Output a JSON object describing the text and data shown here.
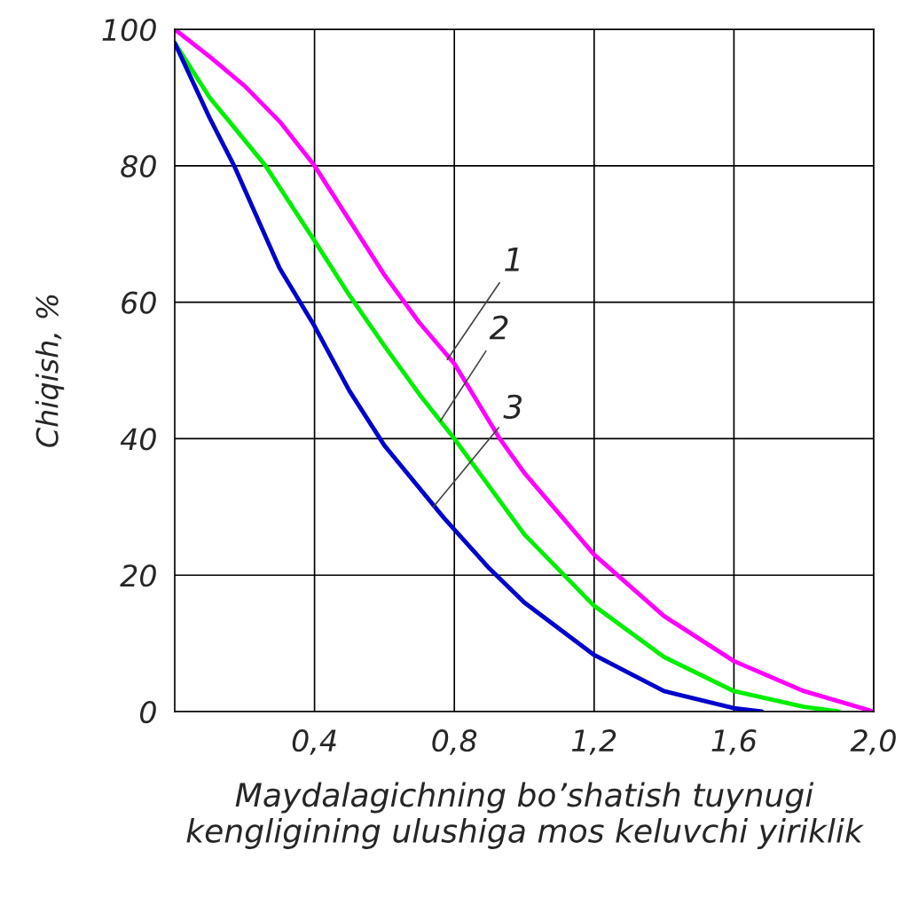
{
  "chart_data": {
    "type": "line",
    "xlabel": "Maydalagichning bo’shatish tuynugi kengligining ulushiga mos keluvchi yiriklik",
    "ylabel": "Chiqish, %",
    "xlim": [
      0,
      2.0
    ],
    "ylim": [
      0,
      100
    ],
    "xticks": [
      {
        "value": 0.4,
        "label": "0,4"
      },
      {
        "value": 0.8,
        "label": "0,8"
      },
      {
        "value": 1.2,
        "label": "1,2"
      },
      {
        "value": 1.6,
        "label": "1,6"
      },
      {
        "value": 2.0,
        "label": "2,0"
      }
    ],
    "yticks": [
      0,
      20,
      40,
      60,
      80,
      100
    ],
    "grid": true,
    "line_style": "solid",
    "marker": "none",
    "series": [
      {
        "color": "#ff00ff",
        "x": [
          0,
          0.1,
          0.2,
          0.3,
          0.4,
          0.5,
          0.6,
          0.7,
          0.8,
          0.93,
          1.0,
          1.2,
          1.4,
          1.6,
          1.8,
          2.0
        ],
        "values": [
          100,
          96,
          91.7,
          86.5,
          80,
          72,
          64,
          57,
          51,
          40,
          35,
          23,
          14,
          7.4,
          3,
          0
        ]
      },
      {
        "color": "#00ee00",
        "x": [
          0,
          0.1,
          0.26,
          0.4,
          0.5,
          0.6,
          0.7,
          0.8,
          1.0,
          1.2,
          1.4,
          1.6,
          1.8,
          1.9
        ],
        "values": [
          98,
          90,
          80,
          69,
          61,
          53.6,
          46.5,
          40,
          26,
          15.5,
          8,
          3,
          0.7,
          0
        ]
      },
      {
        "color": "#0000cc",
        "x": [
          0,
          0.1,
          0.17,
          0.3,
          0.4,
          0.5,
          0.6,
          0.77,
          0.9,
          1.0,
          1.2,
          1.4,
          1.6,
          1.68
        ],
        "values": [
          98,
          87,
          80,
          65,
          56.5,
          47,
          39,
          28.4,
          21,
          16,
          8.3,
          3,
          0.5,
          0
        ]
      }
    ],
    "annotations": [
      {
        "text": "1",
        "x": 0.78,
        "y": 51.6
      },
      {
        "text": "2",
        "x": 0.76,
        "y": 42.6
      },
      {
        "text": "3",
        "x": 0.74,
        "y": 30
      }
    ]
  }
}
